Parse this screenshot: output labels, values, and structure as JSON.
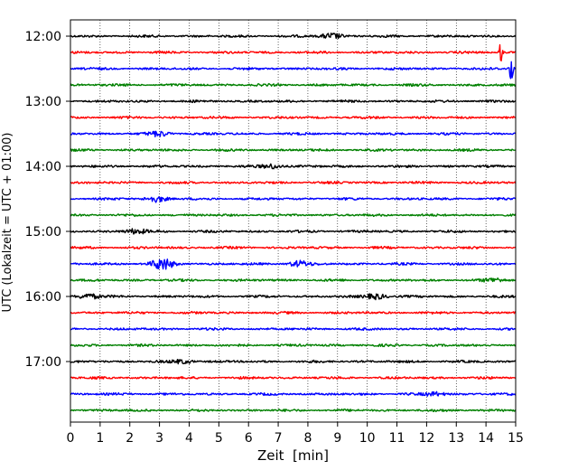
{
  "chart_data": {
    "type": "line",
    "title": "",
    "xlabel": "Zeit  [min]",
    "ylabel": "UTC (Lokalzeit = UTC + 01:00)",
    "xlim": [
      0,
      15
    ],
    "x_ticks": [
      "0",
      "1",
      "2",
      "3",
      "4",
      "5",
      "6",
      "7",
      "8",
      "9",
      "10",
      "11",
      "12",
      "13",
      "14",
      "15"
    ],
    "y_ticks": [
      "12:00",
      "13:00",
      "14:00",
      "15:00",
      "16:00",
      "17:00"
    ],
    "grid": "vertical dotted at each minute",
    "trace_interval_min": 15,
    "color_cycle": [
      "#000000",
      "#ff0000",
      "#0000ff",
      "#008000"
    ],
    "series": [
      {
        "start": "12:00",
        "color": "#000000",
        "events": [
          {
            "t": 8.8,
            "amp": 3
          }
        ]
      },
      {
        "start": "12:15",
        "color": "#ff0000",
        "events": [
          {
            "t": 14.5,
            "amp": 11
          }
        ]
      },
      {
        "start": "12:30",
        "color": "#0000ff",
        "events": [
          {
            "t": 14.85,
            "amp": 16
          }
        ]
      },
      {
        "start": "12:45",
        "color": "#008000",
        "events": []
      },
      {
        "start": "13:00",
        "color": "#000000",
        "events": []
      },
      {
        "start": "13:15",
        "color": "#ff0000",
        "events": []
      },
      {
        "start": "13:30",
        "color": "#0000ff",
        "events": [
          {
            "t": 3.0,
            "amp": 2.5
          }
        ]
      },
      {
        "start": "13:45",
        "color": "#008000",
        "events": []
      },
      {
        "start": "14:00",
        "color": "#000000",
        "events": [
          {
            "t": 6.8,
            "amp": 2.5
          }
        ]
      },
      {
        "start": "14:15",
        "color": "#ff0000",
        "events": []
      },
      {
        "start": "14:30",
        "color": "#0000ff",
        "events": [
          {
            "t": 2.9,
            "amp": 3
          }
        ]
      },
      {
        "start": "14:45",
        "color": "#008000",
        "events": []
      },
      {
        "start": "15:00",
        "color": "#000000",
        "events": [
          {
            "t": 2.2,
            "amp": 2.5
          }
        ]
      },
      {
        "start": "15:15",
        "color": "#ff0000",
        "events": []
      },
      {
        "start": "15:30",
        "color": "#0000ff",
        "events": [
          {
            "t": 3.1,
            "amp": 6
          },
          {
            "t": 7.7,
            "amp": 3
          }
        ]
      },
      {
        "start": "15:45",
        "color": "#008000",
        "events": [
          {
            "t": 14.3,
            "amp": 2
          }
        ]
      },
      {
        "start": "16:00",
        "color": "#000000",
        "events": [
          {
            "t": 0.6,
            "amp": 3
          },
          {
            "t": 10.3,
            "amp": 3
          }
        ]
      },
      {
        "start": "16:15",
        "color": "#ff0000",
        "events": []
      },
      {
        "start": "16:30",
        "color": "#0000ff",
        "events": []
      },
      {
        "start": "16:45",
        "color": "#008000",
        "events": []
      },
      {
        "start": "17:00",
        "color": "#000000",
        "events": [
          {
            "t": 3.8,
            "amp": 2
          }
        ]
      },
      {
        "start": "17:15",
        "color": "#ff0000",
        "events": []
      },
      {
        "start": "17:30",
        "color": "#0000ff",
        "events": [
          {
            "t": 12.3,
            "amp": 2
          }
        ]
      },
      {
        "start": "17:45",
        "color": "#008000",
        "events": []
      }
    ]
  }
}
